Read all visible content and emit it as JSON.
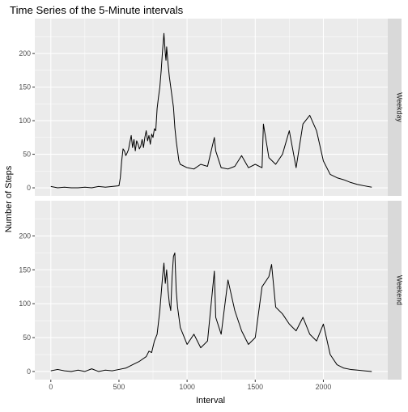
{
  "chart_data": {
    "type": "line",
    "title": "Time Series of the 5-Minute intervals",
    "xlabel": "Interval",
    "ylabel": "Number of Steps",
    "xlim": [
      -117.5,
      2472.5
    ],
    "ylim": [
      -12,
      252
    ],
    "x_ticks": [
      0,
      500,
      1000,
      1500,
      2000
    ],
    "y_ticks": [
      0,
      50,
      100,
      150,
      200
    ],
    "grid": true,
    "legend": "none",
    "colors": {
      "panel_background": "#ebebeb",
      "grid_major": "#ffffff",
      "strip_background": "#d9d9d9",
      "line": "#000000",
      "tick_text": "#4d4d4d"
    },
    "facets": [
      {
        "label": "Weekday",
        "x": [
          0,
          50,
          100,
          150,
          200,
          250,
          300,
          350,
          400,
          450,
          500,
          510,
          520,
          530,
          540,
          550,
          560,
          570,
          580,
          590,
          600,
          610,
          620,
          630,
          640,
          650,
          660,
          670,
          680,
          690,
          700,
          710,
          720,
          730,
          740,
          750,
          760,
          770,
          780,
          790,
          800,
          810,
          820,
          830,
          835,
          840,
          845,
          850,
          860,
          870,
          880,
          890,
          900,
          910,
          920,
          930,
          940,
          950,
          1000,
          1050,
          1100,
          1150,
          1200,
          1210,
          1250,
          1300,
          1350,
          1400,
          1450,
          1500,
          1550,
          1560,
          1600,
          1650,
          1700,
          1750,
          1800,
          1850,
          1900,
          1950,
          2000,
          2050,
          2100,
          2150,
          2200,
          2250,
          2300,
          2355
        ],
        "y": [
          2,
          0,
          1,
          0,
          0,
          1,
          0,
          2,
          1,
          2,
          3,
          15,
          40,
          58,
          55,
          48,
          52,
          57,
          68,
          78,
          60,
          72,
          55,
          70,
          65,
          58,
          62,
          72,
          60,
          75,
          85,
          70,
          78,
          65,
          80,
          75,
          88,
          85,
          118,
          135,
          150,
          175,
          205,
          230,
          215,
          200,
          190,
          210,
          185,
          165,
          150,
          135,
          120,
          90,
          70,
          55,
          40,
          35,
          30,
          28,
          35,
          32,
          75,
          55,
          30,
          28,
          32,
          48,
          30,
          35,
          30,
          95,
          45,
          35,
          50,
          85,
          30,
          95,
          108,
          85,
          40,
          20,
          15,
          12,
          8,
          5,
          3,
          1
        ]
      },
      {
        "label": "Weekend",
        "x": [
          0,
          50,
          100,
          150,
          200,
          250,
          300,
          350,
          400,
          450,
          500,
          550,
          600,
          650,
          700,
          720,
          740,
          760,
          780,
          800,
          820,
          830,
          840,
          850,
          860,
          870,
          880,
          890,
          900,
          910,
          920,
          930,
          940,
          950,
          1000,
          1050,
          1100,
          1150,
          1200,
          1210,
          1250,
          1300,
          1350,
          1400,
          1450,
          1500,
          1550,
          1600,
          1620,
          1650,
          1700,
          1750,
          1800,
          1850,
          1900,
          1950,
          2000,
          2050,
          2100,
          2150,
          2200,
          2250,
          2300,
          2355
        ],
        "y": [
          1,
          3,
          1,
          0,
          2,
          0,
          4,
          0,
          2,
          1,
          3,
          5,
          10,
          15,
          22,
          30,
          28,
          45,
          55,
          90,
          140,
          160,
          130,
          150,
          120,
          100,
          90,
          140,
          170,
          175,
          120,
          95,
          80,
          65,
          40,
          55,
          35,
          45,
          148,
          80,
          55,
          135,
          90,
          60,
          40,
          50,
          125,
          140,
          158,
          95,
          85,
          70,
          60,
          80,
          55,
          45,
          70,
          25,
          10,
          5,
          3,
          2,
          1,
          0
        ]
      }
    ]
  }
}
